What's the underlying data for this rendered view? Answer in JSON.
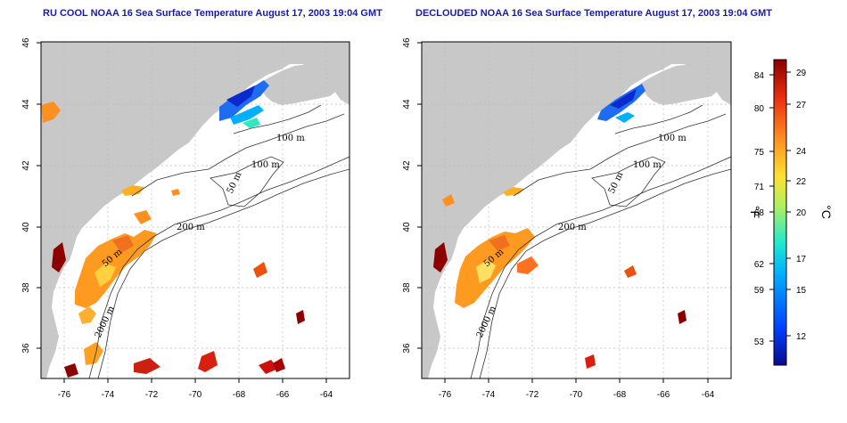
{
  "left_panel": {
    "title": "RU COOL NOAA 16 Sea Surface Temperature August 17, 2003 19:04 GMT"
  },
  "right_panel": {
    "title": "DECLOUDED NOAA 16 Sea Surface Temperature August 17, 2003 19:04 GMT"
  },
  "axes": {
    "lon_ticks": [
      "-76",
      "-74",
      "-72",
      "-70",
      "-68",
      "-66",
      "-64"
    ],
    "lat_ticks": [
      "36",
      "38",
      "40",
      "42",
      "44",
      "46"
    ]
  },
  "contour_labels": {
    "left": [
      "100 m",
      "100 m",
      "50 m",
      "200 m",
      "50 m",
      "2000 m"
    ],
    "right": [
      "100 m",
      "100 m",
      "50 m",
      "200 m",
      "50 m",
      "2000 m"
    ]
  },
  "colorbar": {
    "fahrenheit_label": "°F",
    "celsius_label": "°C",
    "fahrenheit_ticks": [
      "84",
      "80",
      "75",
      "71",
      "68",
      "62",
      "59",
      "53"
    ],
    "celsius_ticks": [
      "29",
      "27",
      "24",
      "22",
      "20",
      "17",
      "15",
      "12"
    ],
    "colors": [
      "#0a0a8c",
      "#0040ff",
      "#00b0ff",
      "#20e8d0",
      "#b0f060",
      "#ffe030",
      "#ff9020",
      "#ee3010",
      "#8c0000"
    ]
  }
}
